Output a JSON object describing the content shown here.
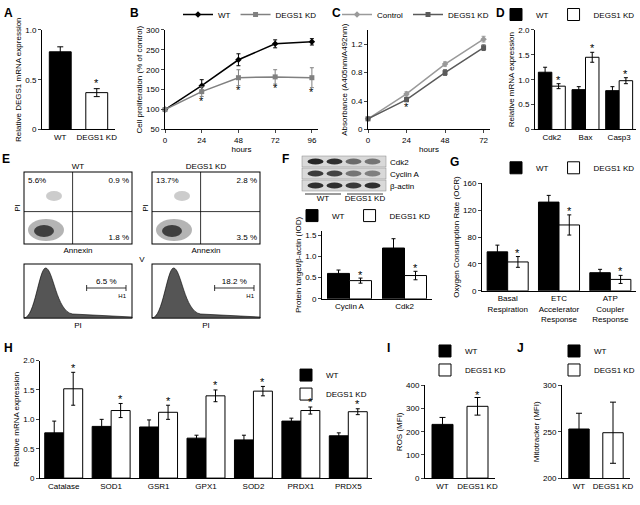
{
  "chart_data": [
    {
      "panel": "A",
      "type": "bar",
      "y_label": "Relative DEGS1 mRNA expression",
      "categories": [
        "WT",
        "DEGS1 KD"
      ],
      "values": [
        0.78,
        0.37
      ],
      "errors": [
        0.05,
        0.04
      ],
      "colors": [
        "#000000",
        "#ffffff"
      ],
      "ylim": [
        0,
        1.0
      ],
      "yticks": [
        0,
        0.5,
        {
          "value": 1,
          "label": "1.0"
        }
      ],
      "annotations": [
        {
          "text": "*",
          "x": "DEGS1 KD",
          "y": 0.47
        }
      ]
    },
    {
      "panel": "B",
      "type": "line",
      "x_label": "hours",
      "y_label": "Cell proliferation (% of control)",
      "x": [
        0,
        24,
        48,
        72,
        96
      ],
      "series": [
        {
          "name": "WT",
          "color": "#000000",
          "marker": "diamond",
          "values": [
            100,
            160,
            225,
            265,
            270
          ],
          "errors": [
            3,
            15,
            15,
            10,
            8
          ]
        },
        {
          "name": "DEGS1 KD",
          "color": "#808080",
          "marker": "square",
          "values": [
            100,
            145,
            180,
            182,
            180
          ],
          "errors": [
            3,
            12,
            20,
            18,
            25
          ]
        }
      ],
      "xlim": [
        0,
        100
      ],
      "xticks": [
        0,
        24,
        48,
        72,
        96
      ],
      "ylim": [
        50,
        300
      ],
      "yticks": [
        50,
        100,
        150,
        200,
        250,
        300
      ],
      "legend": "top",
      "annotations": [
        {
          "text": "*",
          "x": 24,
          "y": 122
        },
        {
          "text": "*",
          "x": 48,
          "y": 150
        },
        {
          "text": "*",
          "x": 72,
          "y": 155
        },
        {
          "text": "*",
          "x": 96,
          "y": 145
        }
      ]
    },
    {
      "panel": "C",
      "type": "line",
      "x_label": "hours",
      "y_label": "Absorbance (A405nm/A492nm)",
      "x": [
        0,
        24,
        48,
        72
      ],
      "series": [
        {
          "name": "Control",
          "color": "#9a9a9a",
          "marker": "diamond",
          "values": [
            0.15,
            0.5,
            0.92,
            1.27
          ],
          "errors": [
            0.02,
            0.03,
            0.03,
            0.04
          ]
        },
        {
          "name": "DEGS1 KD",
          "color": "#5a5a5a",
          "marker": "square",
          "values": [
            0.15,
            0.42,
            0.8,
            1.15
          ],
          "errors": [
            0.02,
            0.03,
            0.04,
            0.04
          ]
        }
      ],
      "xlim": [
        0,
        76
      ],
      "xticks": [
        0,
        24,
        48,
        72
      ],
      "ylim": [
        0,
        1.4
      ],
      "yticks": [
        0,
        0.4,
        0.8,
        1.2
      ],
      "legend": "top",
      "annotations": [
        {
          "text": "*",
          "x": 24,
          "y": 0.32
        }
      ]
    },
    {
      "panel": "D",
      "type": "bar",
      "y_label": "Relative mRNA expression",
      "categories": [
        "Cdk2",
        "Bax",
        "Casp3"
      ],
      "series": [
        {
          "name": "WT",
          "color": "#000000",
          "values": [
            1.15,
            0.8,
            0.78
          ],
          "errors": [
            0.1,
            0.06,
            0.08
          ]
        },
        {
          "name": "DEGS1 KD",
          "color": "#ffffff",
          "values": [
            0.87,
            1.45,
            0.98
          ],
          "errors": [
            0.05,
            0.1,
            0.06
          ]
        }
      ],
      "ylim": [
        0,
        2.0
      ],
      "yticks": [
        0,
        0.5,
        {
          "value": 1,
          "label": "1.0"
        },
        1.5,
        {
          "value": 2,
          "label": "2.0"
        }
      ],
      "legend": "top",
      "annotations": [
        {
          "text": "*",
          "x": "Cdk2",
          "series": "DEGS1 KD",
          "y": 1.0
        },
        {
          "text": "*",
          "x": "Bax",
          "series": "DEGS1 KD",
          "y": 1.63
        },
        {
          "text": "*",
          "x": "Casp3",
          "series": "DEGS1 KD",
          "y": 1.12
        }
      ]
    },
    {
      "type": "bar",
      "y_label": "Protein target/β-actin (IOD)",
      "categories": [
        "Cyclin A",
        "Cdk2"
      ],
      "series": [
        {
          "name": "WT",
          "color": "#000000",
          "values": [
            0.6,
            1.2
          ],
          "errors": [
            0.08,
            0.22
          ]
        },
        {
          "name": "DEGS1 KD",
          "color": "#ffffff",
          "values": [
            0.43,
            0.55
          ],
          "errors": [
            0.06,
            0.1
          ]
        }
      ],
      "ylim": [
        0,
        1.6
      ],
      "yticks": [
        0,
        0.5,
        {
          "value": 1,
          "label": "1.0"
        },
        1.5
      ],
      "legend": "top",
      "annotations": [
        {
          "text": "*",
          "x": "Cyclin A",
          "series": "DEGS1 KD",
          "y": 0.57
        },
        {
          "text": "*",
          "x": "Cdk2",
          "series": "DEGS1 KD",
          "y": 0.73
        }
      ]
    },
    {
      "panel": "G",
      "type": "bar",
      "y_label": "Oxygen Consumption Rate (OCR)",
      "categories": [
        "Basal Respiration",
        "ETC Accelerator Response",
        "ATP Coupler Response"
      ],
      "series": [
        {
          "name": "WT",
          "color": "#000000",
          "values": [
            58,
            132,
            27
          ],
          "errors": [
            10,
            10,
            5
          ]
        },
        {
          "name": "DEGS1 KD",
          "color": "#ffffff",
          "values": [
            43,
            98,
            17
          ],
          "errors": [
            8,
            15,
            6
          ]
        }
      ],
      "ylim": [
        0,
        160
      ],
      "yticks": [
        0,
        40,
        80,
        120,
        160
      ],
      "legend": "top",
      "annotations": [
        {
          "text": "*",
          "x": "Basal Respiration",
          "series": "DEGS1 KD",
          "y": 57
        },
        {
          "text": "*",
          "x": "ETC Accelerator Response",
          "series": "DEGS1 KD",
          "y": 119
        },
        {
          "text": "*",
          "x": "ATP Coupler Response",
          "series": "DEGS1 KD",
          "y": 29
        }
      ]
    },
    {
      "panel": "H",
      "type": "bar",
      "y_label": "Relative mRNA expression",
      "categories": [
        "Catalase",
        "SOD1",
        "GSR1",
        "GPX1",
        "SOD2",
        "PRDX1",
        "PRDX5"
      ],
      "series": [
        {
          "name": "WT",
          "color": "#000000",
          "values": [
            0.77,
            0.88,
            0.87,
            0.68,
            0.65,
            0.97,
            0.72
          ],
          "errors": [
            0.2,
            0.12,
            0.12,
            0.05,
            0.08,
            0.05,
            0.05
          ]
        },
        {
          "name": "DEGS1 KD",
          "color": "#ffffff",
          "values": [
            1.52,
            1.15,
            1.12,
            1.4,
            1.48,
            1.15,
            1.13
          ],
          "errors": [
            0.28,
            0.12,
            0.12,
            0.1,
            0.08,
            0.06,
            0.05
          ]
        }
      ],
      "ylim": [
        0,
        2.0
      ],
      "yticks": [
        0,
        0.5,
        {
          "value": 1,
          "label": "1.0"
        },
        1.5,
        {
          "value": 2,
          "label": "2.0"
        }
      ],
      "legend": "upper right",
      "annotations": [
        {
          "text": "*",
          "x": "Catalase",
          "series": "DEGS1 KD",
          "y": 1.88
        },
        {
          "text": "*",
          "x": "SOD1",
          "series": "DEGS1 KD",
          "y": 1.35
        },
        {
          "text": "*",
          "x": "GSR1",
          "series": "DEGS1 KD",
          "y": 1.32
        },
        {
          "text": "*",
          "x": "GPX1",
          "series": "DEGS1 KD",
          "y": 1.58
        },
        {
          "text": "*",
          "x": "SOD2",
          "series": "DEGS1 KD",
          "y": 1.64
        },
        {
          "text": "*",
          "x": "PRDX1",
          "series": "DEGS1 KD",
          "y": 1.29
        },
        {
          "text": "*",
          "x": "PRDX5",
          "series": "DEGS1 KD",
          "y": 1.26
        }
      ]
    },
    {
      "panel": "I",
      "type": "bar",
      "y_label": "ROS (MFI)",
      "categories": [
        "WT",
        "DEGS1 KD"
      ],
      "values": [
        232,
        310
      ],
      "errors": [
        30,
        38
      ],
      "colors": [
        "#000000",
        "#ffffff"
      ],
      "ylim": [
        0,
        400
      ],
      "yticks": [
        0,
        100,
        200,
        300,
        400
      ],
      "legend": "top",
      "annotations": [
        {
          "text": "*",
          "x": "DEGS1 KD",
          "y": 360
        }
      ]
    },
    {
      "panel": "J",
      "type": "bar",
      "y_label": "Mitotracker (MFI)",
      "categories": [
        "WT",
        "DEGS1 KD"
      ],
      "values": [
        253,
        249
      ],
      "errors": [
        17,
        33
      ],
      "colors": [
        "#000000",
        "#ffffff"
      ],
      "ylim": [
        200,
        300
      ],
      "yticks": [
        200,
        250,
        300
      ],
      "legend": "top"
    }
  ],
  "flow_cytometry": {
    "panel": "E",
    "x_label": "Annexin",
    "y_label": "PI",
    "histogram_x_label": "PI",
    "histogram_marker": "V",
    "gate_label": "H1",
    "samples": [
      {
        "name": "WT",
        "upper_left": "5.6%",
        "upper_right": "0.9 %",
        "lower_right": "1.8 %",
        "gated": "6.5 %"
      },
      {
        "name": "DEGS1 KD",
        "upper_left": "13.7%",
        "upper_right": "2.8 %",
        "lower_right": "3.5 %",
        "gated": "18.2 %"
      }
    ]
  },
  "western_blot": {
    "panel": "F",
    "bands": [
      "Cdk2",
      "Cyclin A",
      "β-actin"
    ],
    "lanes": [
      "WT",
      "DEGS1 KD"
    ]
  }
}
